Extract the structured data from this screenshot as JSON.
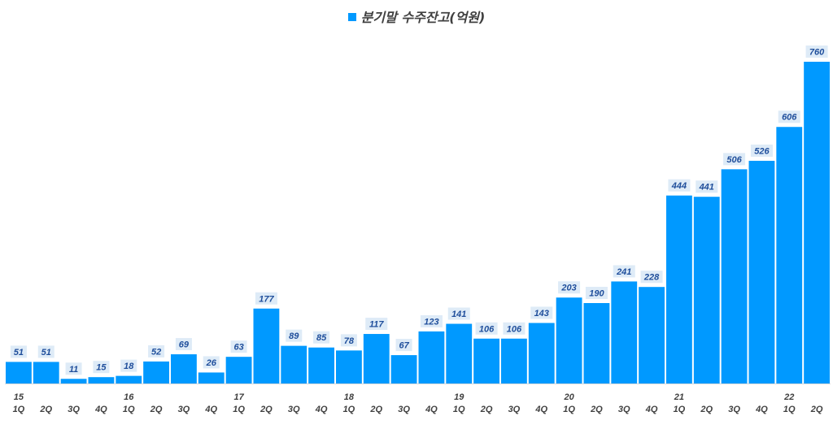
{
  "chart_data": {
    "type": "bar",
    "title": "",
    "xlabel": "",
    "ylabel": "",
    "ylim": [
      0,
      800
    ],
    "grid": false,
    "legend_placement": "top-center",
    "series": [
      {
        "name": "분기말 수주잔고(억원)",
        "color": "#0099FF",
        "values": [
          51,
          51,
          11,
          15,
          18,
          52,
          69,
          26,
          63,
          177,
          89,
          85,
          78,
          117,
          67,
          123,
          141,
          106,
          106,
          143,
          203,
          190,
          241,
          228,
          444,
          441,
          506,
          526,
          606,
          760
        ]
      }
    ],
    "categories": [
      "15 1Q",
      "2Q",
      "3Q",
      "4Q",
      "16 1Q",
      "2Q",
      "3Q",
      "4Q",
      "17 1Q",
      "2Q",
      "3Q",
      "4Q",
      "18 1Q",
      "2Q",
      "3Q",
      "4Q",
      "19 1Q",
      "2Q",
      "3Q",
      "4Q",
      "20 1Q",
      "2Q",
      "3Q",
      "4Q",
      "21 1Q",
      "2Q",
      "3Q",
      "4Q",
      "22 1Q",
      "2Q"
    ],
    "year_labels": [
      "15",
      "",
      "",
      "",
      "16",
      "",
      "",
      "",
      "17",
      "",
      "",
      "",
      "18",
      "",
      "",
      "",
      "19",
      "",
      "",
      "",
      "20",
      "",
      "",
      "",
      "21",
      "",
      "",
      "",
      "22",
      ""
    ],
    "quarter_labels": [
      "1Q",
      "2Q",
      "3Q",
      "4Q",
      "1Q",
      "2Q",
      "3Q",
      "4Q",
      "1Q",
      "2Q",
      "3Q",
      "4Q",
      "1Q",
      "2Q",
      "3Q",
      "4Q",
      "1Q",
      "2Q",
      "3Q",
      "4Q",
      "1Q",
      "2Q",
      "3Q",
      "4Q",
      "1Q",
      "2Q",
      "3Q",
      "4Q",
      "1Q",
      "2Q"
    ],
    "data_label_bg": "#DEEBF7",
    "data_label_color": "#1F4E9B",
    "axis_label_color": "#404040"
  }
}
